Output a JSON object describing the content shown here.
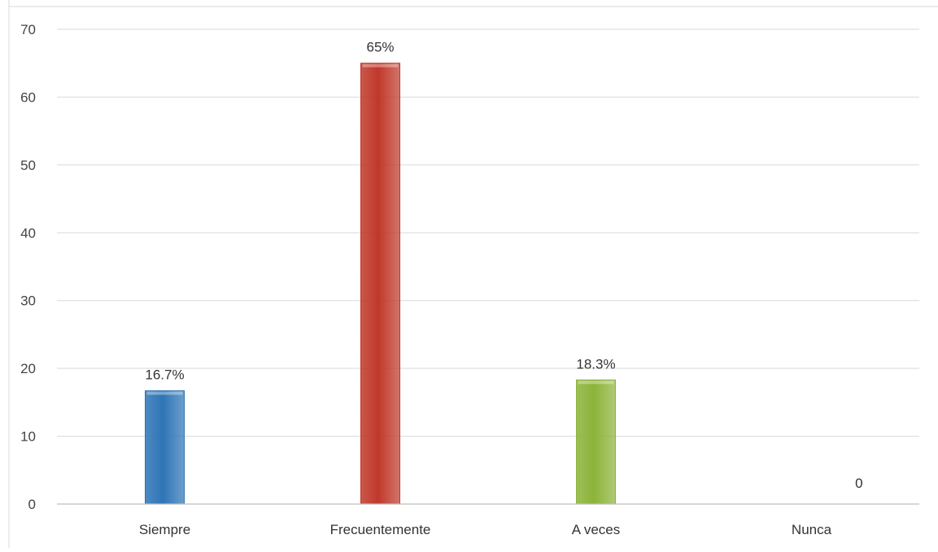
{
  "chart_data": {
    "type": "bar",
    "title": "",
    "xlabel": "",
    "ylabel": "",
    "categories": [
      "Siempre",
      "Frecuentemente",
      "A veces",
      "Nunca"
    ],
    "values": [
      16.7,
      65,
      18.3,
      0
    ],
    "data_labels": [
      "16.7%",
      "65%",
      "18.3%",
      "0"
    ],
    "colors": [
      "#2e75b6",
      "#c0392b",
      "#8db33a",
      "#7f7f7f"
    ],
    "ylim": [
      0,
      70
    ],
    "yticks": [
      0,
      10,
      20,
      30,
      40,
      50,
      60,
      70
    ],
    "ytick_labels": [
      "0",
      "10",
      "20",
      "30",
      "40",
      "50",
      "60",
      "70"
    ],
    "grid": true,
    "legend": "none"
  }
}
